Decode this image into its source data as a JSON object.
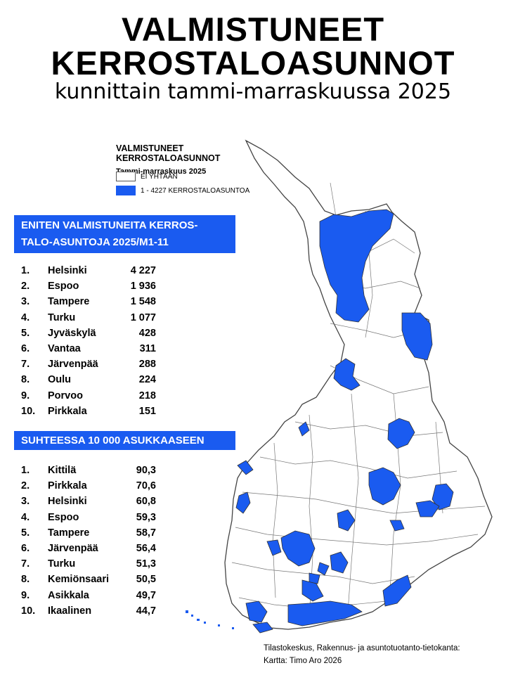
{
  "header": {
    "title_line1": "VALMISTUNEET",
    "title_line2": "KERROSTALOASUNNOT",
    "subtitle": "kunnittain tammi-marraskuussa 2025"
  },
  "legend": {
    "title": "VALMISTUNEET KERROSTALOASUNNOT",
    "subtitle": "Tammi-marraskuus 2025",
    "items": [
      {
        "label": "EI YHTÄÄN",
        "color": "#ffffff"
      },
      {
        "label": "1 - 4227 KERROSTALOASUNTOA",
        "color": "#1a5bf0"
      }
    ]
  },
  "absolute_ranking": {
    "heading_line1": "ENITEN VALMISTUNEITA KERROS-",
    "heading_line2": "TALO-ASUNTOJA 2025/M1-11",
    "items": [
      {
        "rank": "1.",
        "name": "Helsinki",
        "value": "4 227"
      },
      {
        "rank": "2.",
        "name": "Espoo",
        "value": "1 936"
      },
      {
        "rank": "3.",
        "name": "Tampere",
        "value": "1 548"
      },
      {
        "rank": "4.",
        "name": "Turku",
        "value": "1 077"
      },
      {
        "rank": "5.",
        "name": "Jyväskylä",
        "value": "428"
      },
      {
        "rank": "6.",
        "name": "Vantaa",
        "value": "311"
      },
      {
        "rank": "7.",
        "name": "Järvenpää",
        "value": "288"
      },
      {
        "rank": "8.",
        "name": "Oulu",
        "value": "224"
      },
      {
        "rank": "9.",
        "name": "Porvoo",
        "value": "218"
      },
      {
        "rank": "10.",
        "name": "Pirkkala",
        "value": "151"
      }
    ]
  },
  "relative_ranking": {
    "heading": "SUHTEESSA 10 000 ASUKKAASEEN",
    "items": [
      {
        "rank": "1.",
        "name": "Kittilä",
        "value": "90,3"
      },
      {
        "rank": "2.",
        "name": "Pirkkala",
        "value": "70,6"
      },
      {
        "rank": "3.",
        "name": "Helsinki",
        "value": "60,8"
      },
      {
        "rank": "4.",
        "name": "Espoo",
        "value": "59,3"
      },
      {
        "rank": "5.",
        "name": "Tampere",
        "value": "58,7"
      },
      {
        "rank": "6.",
        "name": "Järvenpää",
        "value": "56,4"
      },
      {
        "rank": "7.",
        "name": "Turku",
        "value": "51,3"
      },
      {
        "rank": "8.",
        "name": "Kemiönsaari",
        "value": "50,5"
      },
      {
        "rank": "9.",
        "name": "Asikkala",
        "value": "49,7"
      },
      {
        "rank": "10.",
        "name": "Ikaalinen",
        "value": "44,7"
      }
    ]
  },
  "source": {
    "line1": "Tilastokeskus, Rakennus- ja asuntotuotanto-tietokanta:",
    "line2": "Kartta: Timo Aro 2026"
  },
  "colors": {
    "highlight": "#1a5bf0",
    "none": "#ffffff",
    "border": "#555555"
  }
}
